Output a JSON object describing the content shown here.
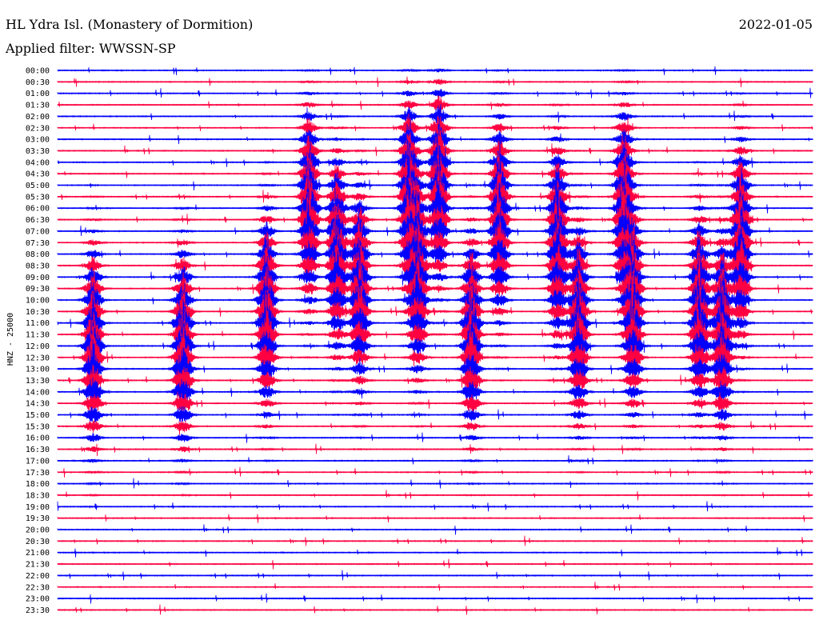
{
  "chart_data": {
    "type": "line",
    "title": "HL Ydra Isl. (Monastery of Dormition)",
    "date": "2022-01-05",
    "subtitle": "Applied filter: WWSSN-SP",
    "ylabel": "HNZ - 25000",
    "grid": false,
    "trace_colors": [
      "#0000ff",
      "#ff0040"
    ],
    "rows": [
      "00:00",
      "00:30",
      "01:00",
      "01:30",
      "02:00",
      "02:30",
      "03:00",
      "03:30",
      "04:00",
      "04:30",
      "05:00",
      "05:30",
      "06:00",
      "06:30",
      "07:00",
      "07:30",
      "08:00",
      "08:30",
      "09:00",
      "09:30",
      "10:00",
      "10:30",
      "11:00",
      "11:30",
      "12:00",
      "12:30",
      "13:00",
      "13:30",
      "14:00",
      "14:30",
      "15:00",
      "15:30",
      "16:00",
      "16:30",
      "17:00",
      "17:30",
      "18:00",
      "18:30",
      "19:00",
      "19:30",
      "20:00",
      "20:30",
      "21:00",
      "21:30",
      "22:00",
      "22:30",
      "23:00",
      "23:30"
    ],
    "events": [
      {
        "x": 0.047,
        "row": 24
      },
      {
        "x": 0.166,
        "row": 24
      },
      {
        "x": 0.277,
        "row": 21
      },
      {
        "x": 0.333,
        "row": 12
      },
      {
        "x": 0.37,
        "row": 16
      },
      {
        "x": 0.4,
        "row": 19
      },
      {
        "x": 0.465,
        "row": 11
      },
      {
        "x": 0.477,
        "row": 18
      },
      {
        "x": 0.505,
        "row": 10
      },
      {
        "x": 0.548,
        "row": 23
      },
      {
        "x": 0.585,
        "row": 13
      },
      {
        "x": 0.662,
        "row": 15
      },
      {
        "x": 0.69,
        "row": 22
      },
      {
        "x": 0.75,
        "row": 12
      },
      {
        "x": 0.762,
        "row": 21
      },
      {
        "x": 0.85,
        "row": 21
      },
      {
        "x": 0.88,
        "row": 23
      },
      {
        "x": 0.905,
        "row": 15
      }
    ]
  }
}
